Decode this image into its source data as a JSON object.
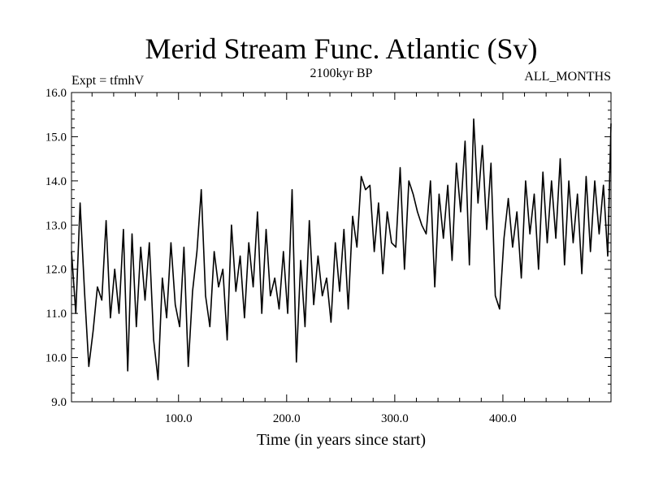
{
  "chart_data": {
    "type": "line",
    "title": "Merid Stream Func. Atlantic (Sv)",
    "subtitle": "2100kyr BP",
    "experiment_label": "Expt = tfmhV",
    "months_label": "ALL_MONTHS",
    "xlabel": "Time (in years since start)",
    "ylabel": "",
    "xlim": [
      1,
      500
    ],
    "ylim": [
      9.0,
      16.0
    ],
    "x_ticks": [
      100,
      200,
      300,
      400
    ],
    "x_tick_labels": [
      "100.0",
      "200.0",
      "300.0",
      "400.0"
    ],
    "y_ticks": [
      9,
      10,
      11,
      12,
      13,
      14,
      15,
      16
    ],
    "y_tick_labels": [
      "9.0",
      "10.0",
      "11.0",
      "12.0",
      "13.0",
      "14.0",
      "15.0",
      "16.0"
    ],
    "series": [
      {
        "name": "Merid Stream Func. Atlantic",
        "x": [
          1,
          5,
          9,
          13,
          17,
          21,
          25,
          29,
          33,
          37,
          41,
          45,
          49,
          53,
          57,
          61,
          65,
          69,
          73,
          77,
          81,
          85,
          89,
          93,
          97,
          101,
          105,
          109,
          113,
          117,
          121,
          125,
          129,
          133,
          137,
          141,
          145,
          149,
          153,
          157,
          161,
          165,
          169,
          173,
          177,
          181,
          185,
          189,
          193,
          197,
          201,
          205,
          209,
          213,
          217,
          221,
          225,
          229,
          233,
          237,
          241,
          245,
          249,
          253,
          257,
          261,
          265,
          269,
          273,
          277,
          281,
          285,
          289,
          293,
          297,
          301,
          305,
          309,
          313,
          317,
          321,
          325,
          329,
          333,
          337,
          341,
          345,
          349,
          353,
          357,
          361,
          365,
          369,
          373,
          377,
          381,
          385,
          389,
          393,
          397,
          401,
          405,
          409,
          413,
          417,
          421,
          425,
          429,
          433,
          437,
          441,
          445,
          449,
          453,
          457,
          461,
          465,
          469,
          473,
          477,
          481,
          485,
          489,
          493,
          497,
          500
        ],
        "values": [
          12.4,
          11.0,
          13.5,
          11.5,
          9.8,
          10.6,
          11.6,
          11.3,
          13.1,
          10.9,
          12.0,
          11.0,
          12.9,
          9.7,
          12.8,
          10.7,
          12.5,
          11.3,
          12.6,
          10.4,
          9.5,
          11.8,
          10.9,
          12.6,
          11.2,
          10.7,
          12.5,
          9.8,
          11.5,
          12.4,
          13.8,
          11.4,
          10.7,
          12.4,
          11.6,
          12.0,
          10.4,
          13.0,
          11.5,
          12.3,
          10.9,
          12.6,
          11.6,
          13.3,
          11.0,
          12.9,
          11.4,
          11.8,
          11.1,
          12.4,
          11.0,
          13.8,
          9.9,
          12.2,
          10.7,
          13.1,
          11.2,
          12.3,
          11.4,
          11.8,
          10.8,
          12.6,
          11.5,
          12.9,
          11.1,
          13.2,
          12.5,
          14.1,
          13.8,
          13.9,
          12.4,
          13.5,
          11.9,
          13.3,
          12.6,
          12.5,
          14.3,
          12.0,
          14.0,
          13.7,
          13.3,
          13.0,
          12.8,
          14.0,
          11.6,
          13.7,
          12.7,
          13.9,
          12.2,
          14.4,
          13.3,
          14.9,
          12.1,
          15.4,
          13.5,
          14.8,
          12.9,
          14.4,
          11.4,
          11.1,
          12.7,
          13.6,
          12.5,
          13.3,
          11.8,
          14.0,
          12.8,
          13.7,
          12.0,
          14.2,
          12.6,
          14.0,
          12.7,
          14.5,
          12.1,
          14.0,
          12.6,
          13.7,
          11.9,
          14.1,
          12.4,
          14.0,
          12.8,
          13.9,
          12.3,
          15.3
        ]
      }
    ]
  }
}
